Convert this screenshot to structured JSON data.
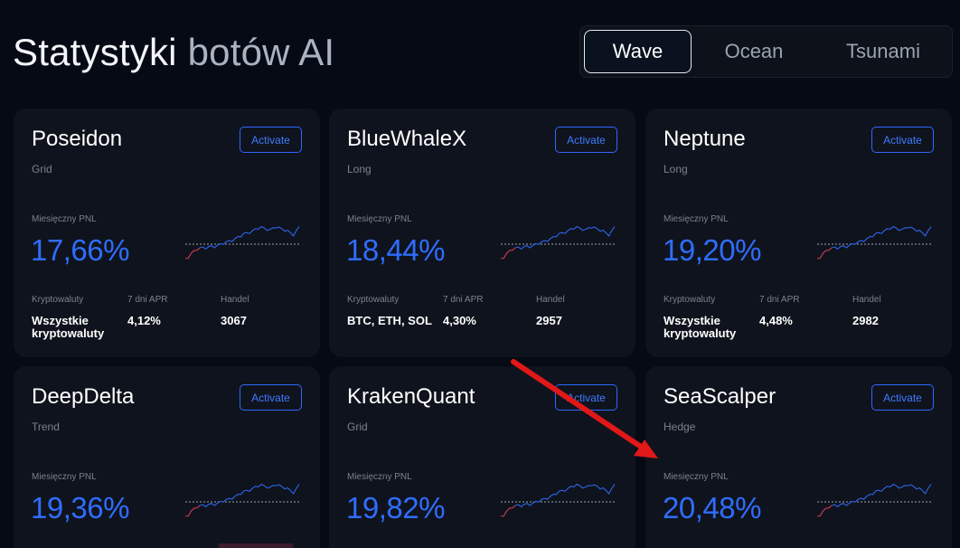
{
  "page": {
    "title_part1": "Statystyki",
    "title_part2": "botów AI"
  },
  "tabs": [
    {
      "label": "Wave",
      "active": true
    },
    {
      "label": "Ocean",
      "active": false
    },
    {
      "label": "Tsunami",
      "active": false
    }
  ],
  "labels": {
    "activate": "Activate",
    "monthly_pnl": "Miesięczny PNL",
    "crypto": "Kryptowaluty",
    "apr7": "7 dni APR",
    "trades": "Handel"
  },
  "colors": {
    "background": "#050a14",
    "card": "#0f131d",
    "accent_blue": "#2f6dff",
    "arrow_red": "#e01818"
  },
  "bots": [
    {
      "name": "Poseidon",
      "type": "Grid",
      "pnl": "17,66%",
      "crypto": "Wszystkie kryptowaluty",
      "apr": "4,12%",
      "trades": "3067"
    },
    {
      "name": "BlueWhaleX",
      "type": "Long",
      "pnl": "18,44%",
      "crypto": "BTC, ETH, SOL",
      "apr": "4,30%",
      "trades": "2957"
    },
    {
      "name": "Neptune",
      "type": "Long",
      "pnl": "19,20%",
      "crypto": "Wszystkie kryptowaluty",
      "apr": "4,48%",
      "trades": "2982"
    },
    {
      "name": "DeepDelta",
      "type": "Trend",
      "pnl": "19,36%"
    },
    {
      "name": "KrakenQuant",
      "type": "Grid",
      "pnl": "19,82%"
    },
    {
      "name": "SeaScalper",
      "type": "Hedge",
      "pnl": "20,48%"
    }
  ]
}
